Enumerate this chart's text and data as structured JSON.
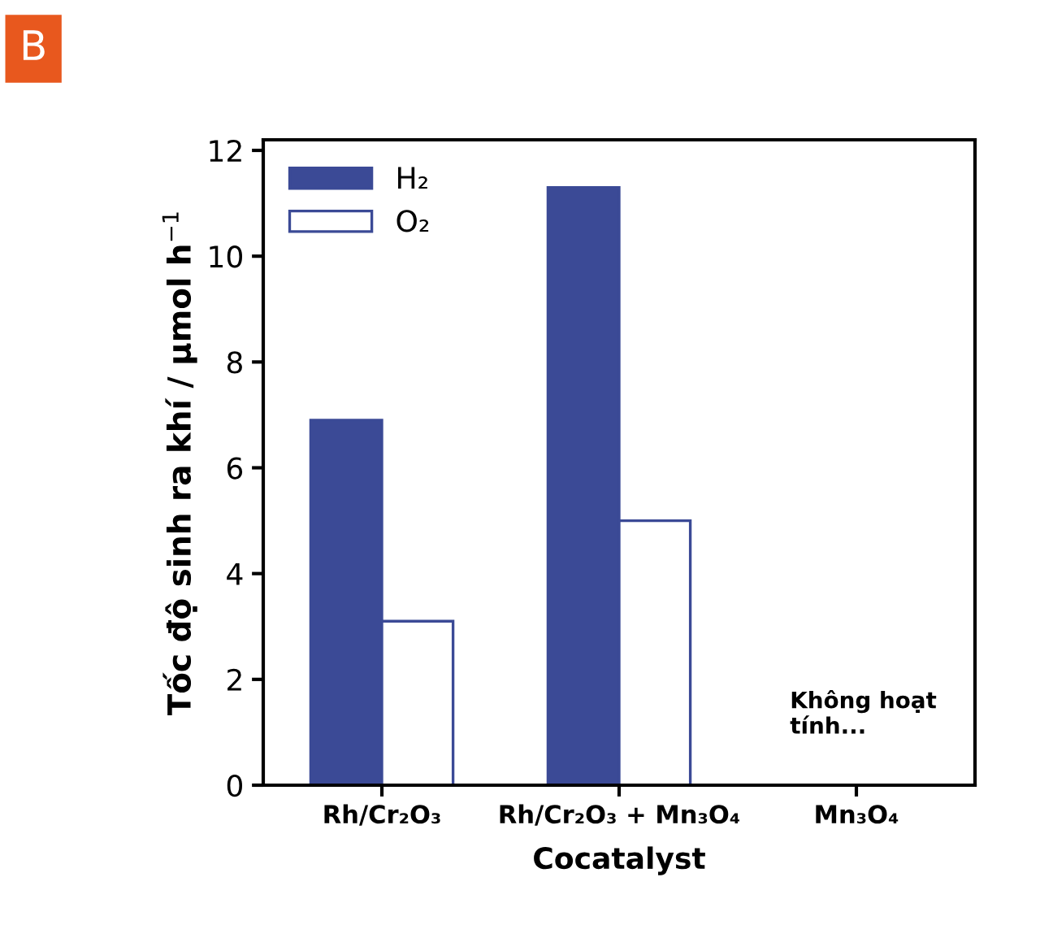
{
  "chart_data": {
    "type": "bar",
    "title": "B",
    "categories": [
      "Rh/Cr₂O₃",
      "Rh/Cr₂O₃ + Mn₃O₄",
      "Mn₃O₄"
    ],
    "series": [
      {
        "name": "H₂",
        "color": "#3b4a96",
        "values": [
          6.9,
          11.3,
          null
        ]
      },
      {
        "name": "O₂",
        "color": "#ffffff",
        "values": [
          3.1,
          5.0,
          null
        ]
      }
    ],
    "xlabel": "Cocatalyst",
    "ylabel": "Tốc độ sinh ra khí / μmol h$^{−1}$",
    "ylim": [
      0,
      12.2
    ],
    "yticks": [
      0,
      2,
      4,
      6,
      8,
      10,
      12
    ],
    "annotations": [
      "Không hoạt\ntính..."
    ],
    "legend": "top left",
    "grid": false
  }
}
